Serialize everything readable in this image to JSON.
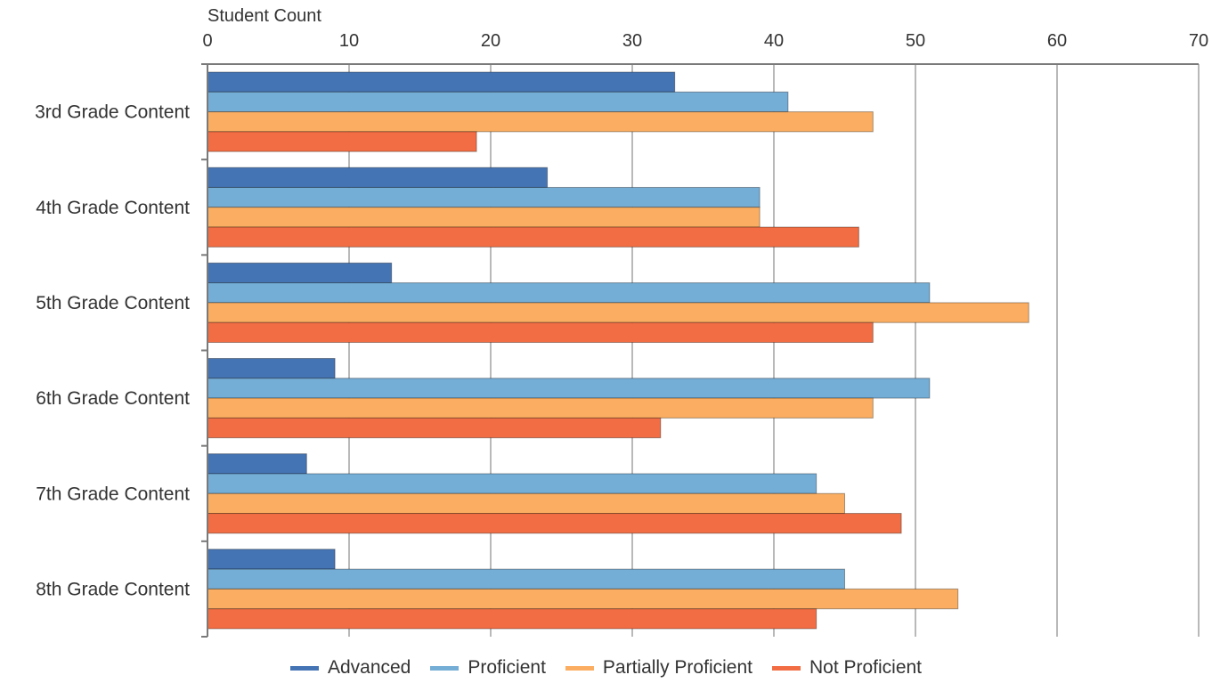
{
  "chart_data": {
    "type": "bar",
    "orientation": "horizontal",
    "title": "",
    "xlabel": "Student Count",
    "ylabel": "",
    "xlim": [
      0,
      70
    ],
    "xticks": [
      0,
      10,
      20,
      30,
      40,
      50,
      60,
      70
    ],
    "grid": true,
    "legend_position": "bottom",
    "categories": [
      "3rd Grade Content",
      "4th Grade Content",
      "5th Grade Content",
      "6th Grade Content",
      "7th Grade Content",
      "8th Grade Content"
    ],
    "series": [
      {
        "name": "Advanced",
        "color": "#4574b4",
        "values": [
          33,
          24,
          13,
          9,
          7,
          9
        ]
      },
      {
        "name": "Proficient",
        "color": "#74add6",
        "values": [
          41,
          39,
          51,
          51,
          43,
          45
        ]
      },
      {
        "name": "Partially Proficient",
        "color": "#fbae61",
        "values": [
          47,
          39,
          58,
          47,
          45,
          53
        ]
      },
      {
        "name": "Not Proficient",
        "color": "#f26d43",
        "values": [
          19,
          46,
          47,
          32,
          49,
          43
        ]
      }
    ]
  }
}
